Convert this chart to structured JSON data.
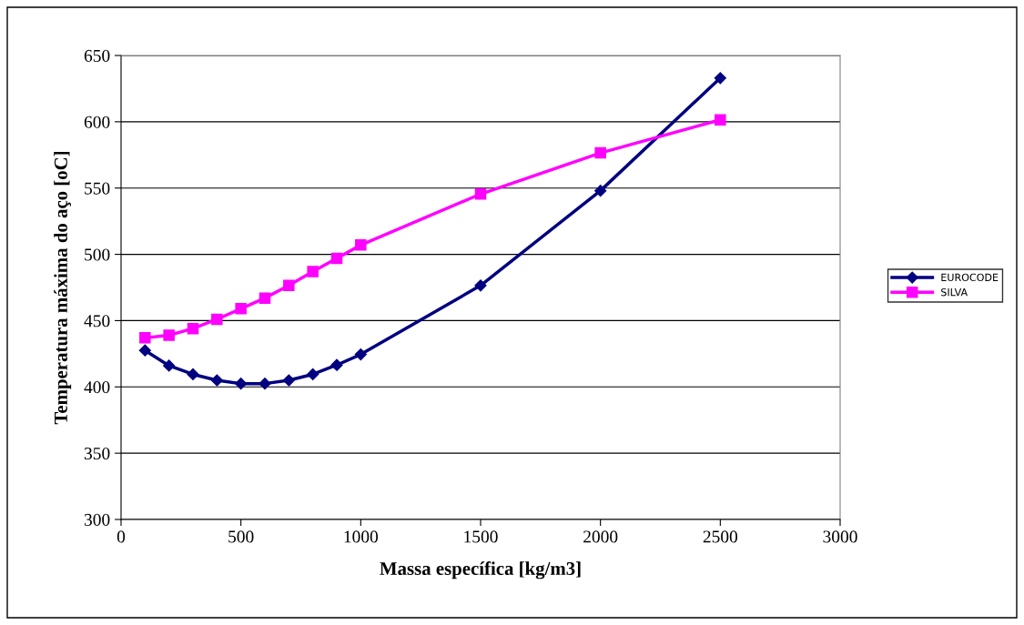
{
  "chart_data": {
    "type": "line",
    "xlabel": "Massa específica [kg/m3]",
    "ylabel": "Temperatura máxima do aço [oC]",
    "x": [
      100,
      200,
      300,
      400,
      500,
      600,
      700,
      800,
      900,
      1000,
      1500,
      2000,
      2500
    ],
    "series": [
      {
        "name": "EUROCODE",
        "color": "#000080",
        "marker": "diamond",
        "values": [
          427.5,
          416,
          409.5,
          405,
          402.5,
          402.5,
          405,
          409.5,
          416.5,
          424.5,
          476.5,
          548,
          633
        ]
      },
      {
        "name": "SILVA",
        "color": "#ff00ff",
        "marker": "square",
        "values": [
          437,
          439,
          444,
          451,
          459,
          467,
          476.5,
          487,
          497,
          507,
          545.5,
          576.5,
          601.5
        ]
      }
    ],
    "xlim": [
      0,
      3000
    ],
    "xticks": [
      0,
      500,
      1000,
      1500,
      2000,
      2500,
      3000
    ],
    "ylim": [
      300,
      650
    ],
    "yticks": [
      300,
      350,
      400,
      450,
      500,
      550,
      600,
      650
    ],
    "grid": "y",
    "legend": "right"
  }
}
